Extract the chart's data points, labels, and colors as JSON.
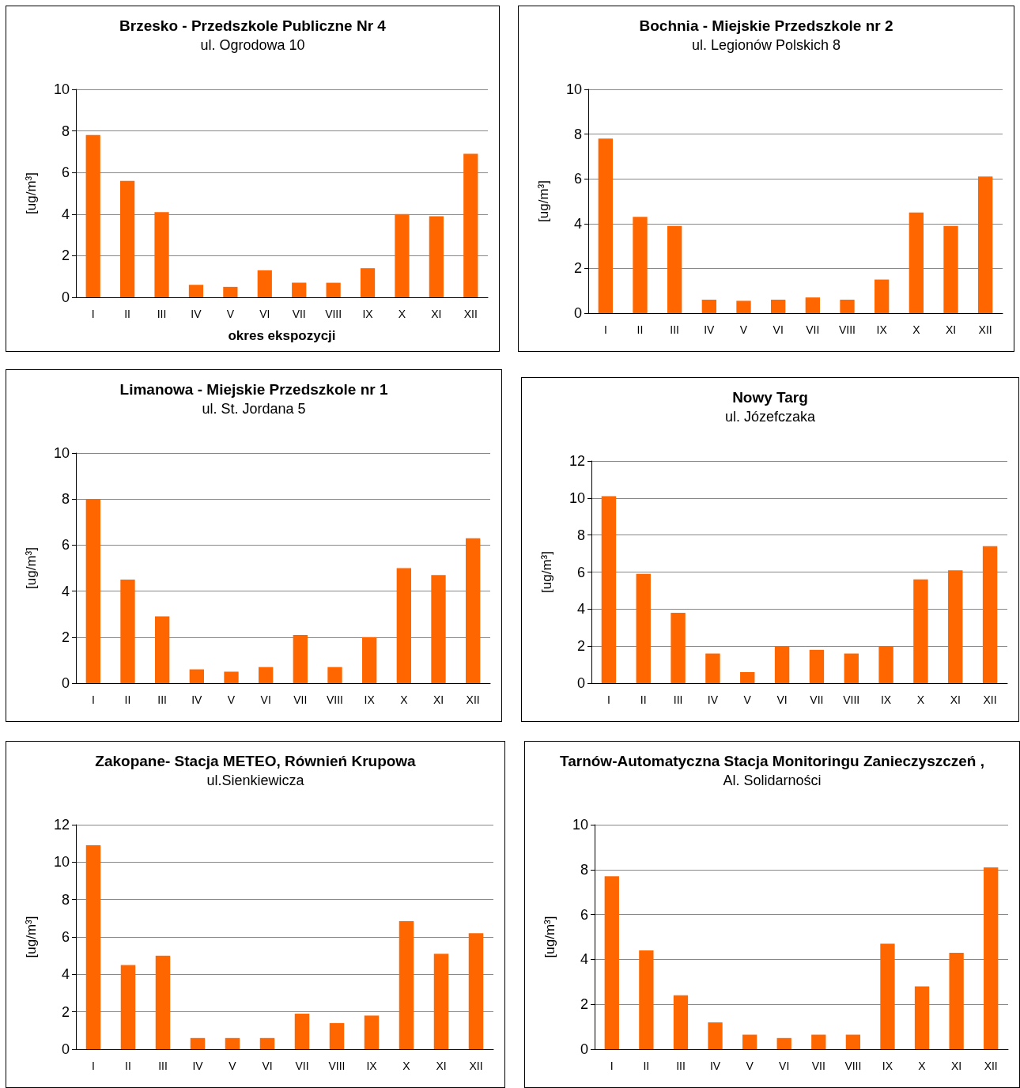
{
  "chart_data": [
    {
      "type": "bar",
      "title": "Brzesko - Przedszkole Publiczne Nr 4",
      "subtitle": "ul. Ogrodowa 10",
      "xlabel": "okres ekspozycji",
      "ylabel": "[ug/m³]",
      "categories": [
        "I",
        "II",
        "III",
        "IV",
        "V",
        "VI",
        "VII",
        "VIII",
        "IX",
        "X",
        "XI",
        "XII"
      ],
      "values": [
        7.8,
        5.6,
        4.1,
        0.6,
        0.5,
        1.3,
        0.7,
        0.7,
        1.4,
        4.0,
        3.9,
        6.9
      ],
      "color": "#ff6600",
      "ylim": [
        0,
        10
      ],
      "yticks": [
        0,
        2,
        4,
        6,
        8,
        10
      ],
      "grid": "y"
    },
    {
      "type": "bar",
      "title": "Bochnia - Miejskie Przedszkole nr 2",
      "subtitle": "ul. Legionów Polskich 8",
      "ylabel": "[ug/m³]",
      "categories": [
        "I",
        "II",
        "III",
        "IV",
        "V",
        "VI",
        "VII",
        "VIII",
        "IX",
        "X",
        "XI",
        "XII"
      ],
      "values": [
        7.8,
        4.3,
        3.9,
        0.6,
        0.55,
        0.6,
        0.7,
        0.6,
        1.5,
        4.5,
        3.9,
        6.1
      ],
      "color": "#ff6600",
      "ylim": [
        0,
        10
      ],
      "yticks": [
        0,
        2,
        4,
        6,
        8,
        10
      ],
      "grid": "y"
    },
    {
      "type": "bar",
      "title": "Limanowa - Miejskie Przedszkole nr 1",
      "subtitle": "ul. St. Jordana 5",
      "ylabel": "[ug/m³]",
      "categories": [
        "I",
        "II",
        "III",
        "IV",
        "V",
        "VI",
        "VII",
        "VIII",
        "IX",
        "X",
        "XI",
        "XII"
      ],
      "values": [
        8.0,
        4.5,
        2.9,
        0.6,
        0.5,
        0.7,
        2.1,
        0.7,
        2.0,
        5.0,
        4.7,
        6.3
      ],
      "color": "#ff6600",
      "ylim": [
        0,
        10
      ],
      "yticks": [
        0,
        2,
        4,
        6,
        8,
        10
      ],
      "grid": "y"
    },
    {
      "type": "bar",
      "title": "Nowy Targ",
      "subtitle": "ul. Józefczaka",
      "ylabel": "[ug/m³]",
      "categories": [
        "I",
        "II",
        "III",
        "IV",
        "V",
        "VI",
        "VII",
        "VIII",
        "IX",
        "X",
        "XI",
        "XII"
      ],
      "values": [
        10.1,
        5.9,
        3.8,
        1.6,
        0.6,
        2.0,
        1.8,
        1.6,
        2.0,
        5.6,
        6.1,
        7.4
      ],
      "color": "#ff6600",
      "ylim": [
        0,
        12
      ],
      "yticks": [
        0,
        2,
        4,
        6,
        8,
        10,
        12
      ],
      "grid": "y"
    },
    {
      "type": "bar",
      "title": "Zakopane- Stacja METEO, Równień Krupowa",
      "subtitle": "ul.Sienkiewicza",
      "ylabel": "[ug/m³]",
      "categories": [
        "I",
        "II",
        "III",
        "IV",
        "V",
        "VI",
        "VII",
        "VIII",
        "IX",
        "X",
        "XI",
        "XII"
      ],
      "values": [
        10.9,
        4.5,
        5.0,
        0.6,
        0.6,
        0.6,
        1.9,
        1.4,
        1.8,
        6.85,
        5.1,
        6.2
      ],
      "color": "#ff6600",
      "ylim": [
        0,
        12
      ],
      "yticks": [
        0,
        2,
        4,
        6,
        8,
        10,
        12
      ],
      "grid": "y"
    },
    {
      "type": "bar",
      "title": "Tarnów-Automatyczna Stacja Monitoringu Zanieczyszczeń ,",
      "subtitle": "Al. Solidarności",
      "ylabel": "[ug/m³]",
      "categories": [
        "I",
        "II",
        "III",
        "IV",
        "V",
        "VI",
        "VII",
        "VIII",
        "IX",
        "X",
        "XI",
        "XII"
      ],
      "values": [
        7.7,
        4.4,
        2.4,
        1.2,
        0.65,
        0.5,
        0.65,
        0.65,
        4.7,
        2.8,
        4.3,
        8.1
      ],
      "color": "#ff6600",
      "ylim": [
        0,
        10
      ],
      "yticks": [
        0,
        2,
        4,
        6,
        8,
        10
      ],
      "grid": "y"
    }
  ]
}
